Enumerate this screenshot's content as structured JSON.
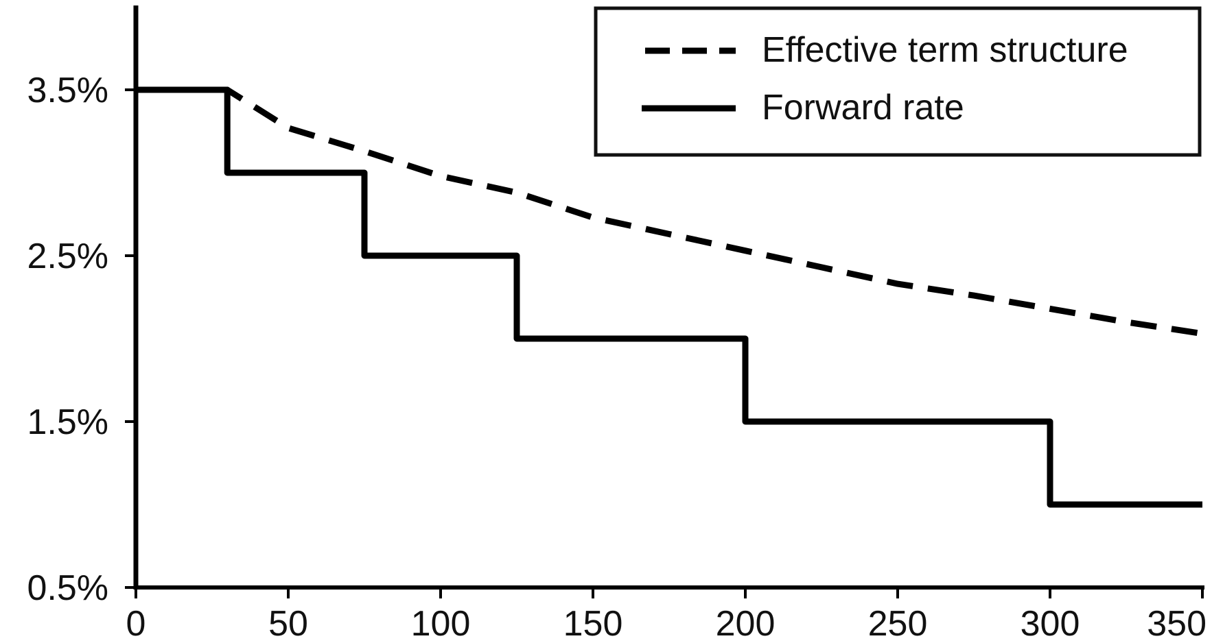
{
  "chart_data": {
    "type": "line",
    "title": "",
    "xlabel": "",
    "ylabel": "",
    "xlim": [
      0,
      350
    ],
    "ylim": [
      0.5,
      4.0
    ],
    "x_ticks": [
      0,
      50,
      100,
      150,
      200,
      250,
      300,
      350
    ],
    "x_tick_labels": [
      "0",
      "50",
      "100",
      "150",
      "200",
      "250",
      "300",
      "350"
    ],
    "y_ticks": [
      0.5,
      1.5,
      2.5,
      3.5
    ],
    "y_tick_labels": [
      "0.5%",
      "1.5%",
      "2.5%",
      "3.5%"
    ],
    "grid": false,
    "legend_position": "top-right",
    "series": [
      {
        "name": "Effective term structure",
        "style": "dashed",
        "color": "#000000",
        "x": [
          0,
          30,
          50,
          75,
          100,
          125,
          150,
          175,
          200,
          225,
          250,
          275,
          300,
          325,
          350
        ],
        "y": [
          3.5,
          3.5,
          3.27,
          3.13,
          2.98,
          2.88,
          2.73,
          2.63,
          2.53,
          2.43,
          2.33,
          2.26,
          2.18,
          2.1,
          2.03
        ]
      },
      {
        "name": "Forward rate",
        "style": "solid",
        "color": "#000000",
        "x": [
          0,
          30,
          30,
          75,
          75,
          125,
          125,
          200,
          200,
          300,
          300,
          350
        ],
        "y": [
          3.5,
          3.5,
          3.0,
          3.0,
          2.5,
          2.5,
          2.0,
          2.0,
          1.5,
          1.5,
          1.0,
          1.0
        ]
      }
    ]
  }
}
